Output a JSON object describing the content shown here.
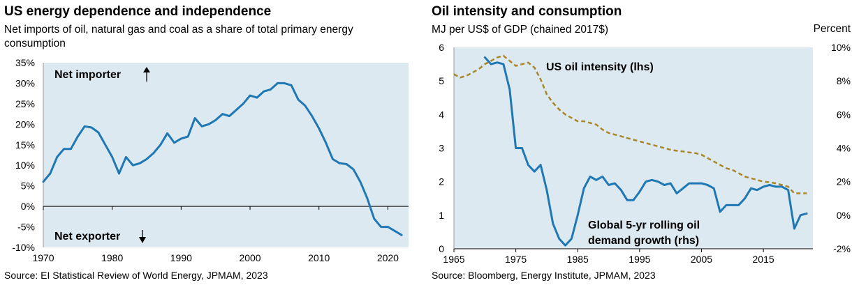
{
  "chart_data": [
    {
      "type": "line",
      "title": "US energy dependence and independence",
      "subtitle": "Net imports of oil, natural gas and coal as a share of total primary energy consumption",
      "source": "Source: EI Statistical Review of World Energy, JPMAM, 2023",
      "xlim": [
        1970,
        2023
      ],
      "ylim": [
        -10,
        35
      ],
      "x_ticks": [
        1970,
        1980,
        1990,
        2000,
        2010,
        2020
      ],
      "y_ticks": [
        -10,
        -5,
        0,
        5,
        10,
        15,
        20,
        25,
        30,
        35
      ],
      "y_tick_labels": [
        "-10%",
        "-5%",
        "0%",
        "5%",
        "10%",
        "15%",
        "20%",
        "25%",
        "30%",
        "35%"
      ],
      "annotations": [
        {
          "text": "Net importer",
          "arrow": "up"
        },
        {
          "text": "Net exporter",
          "arrow": "down"
        }
      ],
      "grid": false,
      "series": [
        {
          "name": "",
          "color": "#1f77b4",
          "x": [
            1970,
            1971,
            1972,
            1973,
            1974,
            1975,
            1976,
            1977,
            1978,
            1979,
            1980,
            1981,
            1982,
            1983,
            1984,
            1985,
            1986,
            1987,
            1988,
            1989,
            1990,
            1991,
            1992,
            1993,
            1994,
            1995,
            1996,
            1997,
            1998,
            1999,
            2000,
            2001,
            2002,
            2003,
            2004,
            2005,
            2006,
            2007,
            2008,
            2009,
            2010,
            2011,
            2012,
            2013,
            2014,
            2015,
            2016,
            2017,
            2018,
            2019,
            2020,
            2021,
            2022
          ],
          "y": [
            6,
            8,
            12,
            14,
            14,
            17,
            19.5,
            19.2,
            18,
            15,
            12,
            8,
            12,
            10,
            10.5,
            11.5,
            13,
            15,
            17.8,
            15.5,
            16.5,
            17,
            21.5,
            19.5,
            20,
            21,
            22.5,
            22,
            23.5,
            25,
            27,
            26.5,
            28,
            28.5,
            30,
            30,
            29.5,
            26,
            24.5,
            22,
            19,
            15.5,
            11.5,
            10.5,
            10.3,
            9,
            6,
            2,
            -3,
            -5,
            -5,
            -6,
            -7
          ]
        }
      ]
    },
    {
      "type": "line",
      "title": "Oil intensity and consumption",
      "subtitle": "MJ per US$ of GDP (chained 2017$)",
      "right_axis_label": "Percent",
      "source": "Source: Bloomberg, Energy Institute, JPMAM, 2023",
      "xlim": [
        1965,
        2023
      ],
      "ylim": [
        0,
        6
      ],
      "y2lim": [
        -2,
        10
      ],
      "x_ticks": [
        1965,
        1975,
        1985,
        1995,
        2005,
        2015
      ],
      "y_ticks": [
        0,
        1,
        2,
        3,
        4,
        5,
        6
      ],
      "y2_ticks": [
        -2,
        0,
        2,
        4,
        6,
        8,
        10
      ],
      "y2_tick_labels": [
        "-2%",
        "0%",
        "2%",
        "4%",
        "6%",
        "8%",
        "10%"
      ],
      "grid": false,
      "series": [
        {
          "name": "US oil intensity (lhs)",
          "axis": "left",
          "style": "dashed",
          "color": "#a8862a",
          "x": [
            1965,
            1966,
            1967,
            1968,
            1969,
            1970,
            1971,
            1972,
            1973,
            1974,
            1975,
            1976,
            1977,
            1978,
            1979,
            1980,
            1981,
            1982,
            1983,
            1984,
            1985,
            1986,
            1987,
            1988,
            1989,
            1990,
            1991,
            1992,
            1993,
            1994,
            1995,
            1996,
            1997,
            1998,
            1999,
            2000,
            2001,
            2002,
            2003,
            2004,
            2005,
            2006,
            2007,
            2008,
            2009,
            2010,
            2011,
            2012,
            2013,
            2014,
            2015,
            2016,
            2017,
            2018,
            2019,
            2020,
            2021,
            2022
          ],
          "y": [
            5.2,
            5.1,
            5.15,
            5.25,
            5.35,
            5.5,
            5.6,
            5.7,
            5.75,
            5.6,
            5.45,
            5.5,
            5.55,
            5.4,
            5.05,
            4.6,
            4.35,
            4.15,
            4.0,
            3.9,
            3.8,
            3.8,
            3.75,
            3.7,
            3.55,
            3.45,
            3.4,
            3.35,
            3.3,
            3.25,
            3.2,
            3.15,
            3.1,
            3.05,
            3.0,
            2.95,
            2.92,
            2.9,
            2.87,
            2.85,
            2.8,
            2.7,
            2.6,
            2.5,
            2.4,
            2.35,
            2.25,
            2.15,
            2.1,
            2.05,
            2.0,
            1.98,
            1.95,
            1.9,
            1.85,
            1.65,
            1.65,
            1.65
          ]
        },
        {
          "name": "Global 5-yr rolling oil demand growth (rhs)",
          "axis": "right",
          "style": "solid",
          "color": "#1f77b4",
          "x": [
            1970,
            1971,
            1972,
            1973,
            1974,
            1975,
            1976,
            1977,
            1978,
            1979,
            1980,
            1981,
            1982,
            1983,
            1984,
            1985,
            1986,
            1987,
            1988,
            1989,
            1990,
            1991,
            1992,
            1993,
            1994,
            1995,
            1996,
            1997,
            1998,
            1999,
            2000,
            2001,
            2002,
            2003,
            2004,
            2005,
            2006,
            2007,
            2008,
            2009,
            2010,
            2011,
            2012,
            2013,
            2014,
            2015,
            2016,
            2017,
            2018,
            2019,
            2020,
            2021,
            2022
          ],
          "y": [
            9.4,
            9.0,
            9.1,
            9.0,
            7.5,
            4.0,
            4.0,
            3.0,
            2.6,
            3.0,
            1.5,
            -0.5,
            -1.4,
            -1.8,
            -1.4,
            0.0,
            1.6,
            2.3,
            2.1,
            2.3,
            1.8,
            1.9,
            1.5,
            0.9,
            0.9,
            1.4,
            2.0,
            2.1,
            2.0,
            1.8,
            1.9,
            1.3,
            1.6,
            1.9,
            1.9,
            1.9,
            1.8,
            1.6,
            0.2,
            0.6,
            0.6,
            0.6,
            1.0,
            1.6,
            1.5,
            1.7,
            1.8,
            1.7,
            1.7,
            1.5,
            -0.8,
            0.0,
            0.1
          ]
        }
      ]
    }
  ]
}
